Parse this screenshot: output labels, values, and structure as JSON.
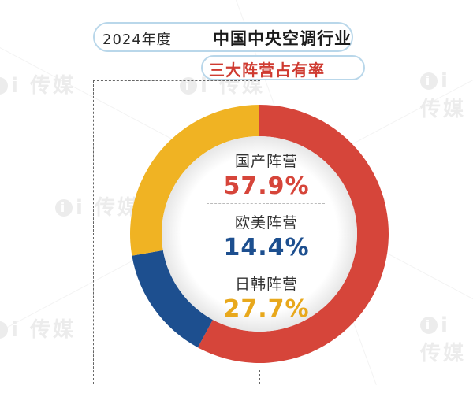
{
  "header": {
    "year_label": "2024年度",
    "title": "中国中央空调行业",
    "subtitle": "三大阵营占有率"
  },
  "watermark": "i 传媒",
  "chart_data": {
    "type": "pie",
    "title": "中国中央空调行业三大阵营占有率",
    "categories": [
      "国产阵营",
      "欧美阵营",
      "日韩阵营"
    ],
    "values": [
      57.9,
      14.4,
      27.7
    ],
    "unit": "%",
    "labels": [
      "57.9%",
      "14.4%",
      "27.7%"
    ],
    "colors": [
      "#d6453a",
      "#1d4f8f",
      "#f0b323"
    ],
    "display": "donut"
  }
}
